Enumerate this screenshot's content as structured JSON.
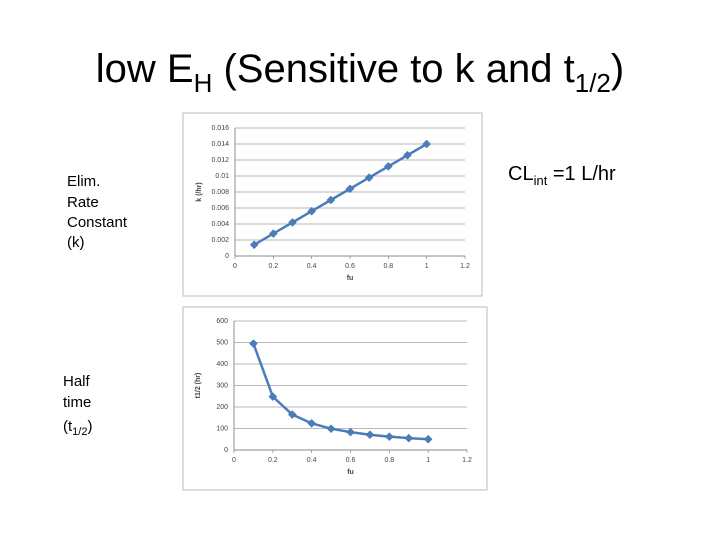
{
  "slide": {
    "title": [
      "low E",
      "H",
      " (Sensitive to k and t",
      "1/2",
      ")"
    ],
    "label_k": [
      "Elim.",
      "Rate",
      "Constant",
      "(k)"
    ],
    "label_t": [
      "Half",
      "time",
      "(t",
      "1/2",
      ")"
    ],
    "note": [
      "CL",
      "int",
      " =1 L/hr"
    ]
  },
  "chart_data": [
    {
      "type": "line",
      "xlabel": "fu",
      "ylabel": "k (/hr)",
      "x": [
        0.1,
        0.2,
        0.3,
        0.4,
        0.5,
        0.6,
        0.7,
        0.8,
        0.9,
        1.0
      ],
      "values": [
        0.0014,
        0.0028,
        0.0042,
        0.0056,
        0.007,
        0.0084,
        0.0098,
        0.0112,
        0.0126,
        0.014
      ],
      "color": "#4a7ebb",
      "xlim": [
        0,
        1.2
      ],
      "xticks": [
        0,
        0.2,
        0.4,
        0.6,
        0.8,
        1,
        1.2
      ],
      "ylim": [
        0,
        0.016
      ],
      "yticks": [
        0,
        0.002,
        0.004,
        0.006,
        0.008,
        0.01,
        0.012,
        0.014,
        0.016
      ],
      "grid": true
    },
    {
      "type": "line",
      "xlabel": "fu",
      "ylabel": "t1/2 (hr)",
      "x": [
        0.1,
        0.2,
        0.3,
        0.4,
        0.5,
        0.6,
        0.7,
        0.8,
        0.9,
        1.0
      ],
      "values": [
        495,
        248,
        165,
        124,
        99,
        83,
        71,
        62,
        55,
        50
      ],
      "color": "#4a7ebb",
      "xlim": [
        0,
        1.2
      ],
      "xticks": [
        0,
        0.2,
        0.4,
        0.6,
        0.8,
        1,
        1.2
      ],
      "ylim": [
        0,
        600
      ],
      "yticks": [
        0,
        100,
        200,
        300,
        400,
        500,
        600
      ],
      "grid": true
    }
  ]
}
